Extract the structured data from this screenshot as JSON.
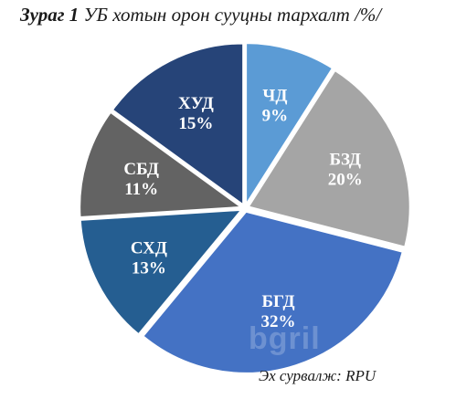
{
  "title": {
    "figure_label": "Зураг 1",
    "text": "УБ хотын орон сууцны тархалт /%/"
  },
  "source": "Эх сурвалж: RPU",
  "watermark": "bgril",
  "chart_data": {
    "type": "pie",
    "title": "Зураг 1 УБ хотын орон сууцны тархалт /%/",
    "unit": "%",
    "slices": [
      {
        "label": "ЧД",
        "value": 9,
        "display": "9%",
        "color": "#5b9bd5"
      },
      {
        "label": "БЗД",
        "value": 20,
        "display": "20%",
        "color": "#a5a5a5"
      },
      {
        "label": "БГД",
        "value": 32,
        "display": "32%",
        "color": "#4472c4"
      },
      {
        "label": "СХД",
        "value": 13,
        "display": "13%",
        "color": "#255e91"
      },
      {
        "label": "СБД",
        "value": 11,
        "display": "11%",
        "color": "#636363"
      },
      {
        "label": "ХУД",
        "value": 15,
        "display": "15%",
        "color": "#264478"
      }
    ]
  }
}
